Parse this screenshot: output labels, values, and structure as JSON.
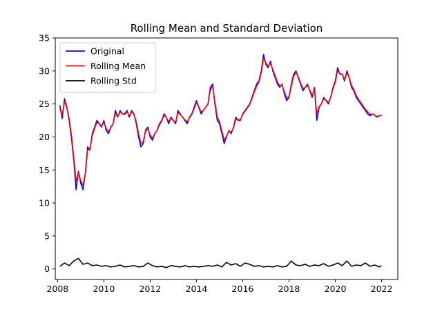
{
  "chart_data": {
    "type": "line",
    "title": "Rolling Mean and Standard Deviation",
    "xlabel": "",
    "ylabel": "",
    "xlim": [
      2007.9,
      2022.7
    ],
    "ylim": [
      -1.6,
      35
    ],
    "xticks": [
      2008,
      2010,
      2012,
      2014,
      2016,
      2018,
      2020,
      2022
    ],
    "yticks": [
      0,
      5,
      10,
      15,
      20,
      25,
      30,
      35
    ],
    "grid": false,
    "legend_position": "top-left",
    "series": [
      {
        "name": "Original",
        "color": "#0000ff",
        "x": [
          2008.1,
          2008.2,
          2008.3,
          2008.4,
          2008.5,
          2008.6,
          2008.7,
          2008.8,
          2008.9,
          2009.0,
          2009.1,
          2009.2,
          2009.3,
          2009.4,
          2009.5,
          2009.6,
          2009.7,
          2009.8,
          2009.9,
          2010.0,
          2010.1,
          2010.2,
          2010.3,
          2010.4,
          2010.5,
          2010.6,
          2010.7,
          2010.8,
          2010.9,
          2011.0,
          2011.1,
          2011.2,
          2011.3,
          2011.4,
          2011.5,
          2011.6,
          2011.7,
          2011.8,
          2011.9,
          2012.0,
          2012.1,
          2012.2,
          2012.3,
          2012.4,
          2012.5,
          2012.6,
          2012.7,
          2012.8,
          2012.9,
          2013.0,
          2013.1,
          2013.2,
          2013.3,
          2013.4,
          2013.5,
          2013.6,
          2013.7,
          2013.8,
          2013.9,
          2014.0,
          2014.1,
          2014.2,
          2014.3,
          2014.4,
          2014.5,
          2014.6,
          2014.7,
          2014.8,
          2014.9,
          2015.0,
          2015.1,
          2015.2,
          2015.3,
          2015.4,
          2015.5,
          2015.6,
          2015.7,
          2015.8,
          2015.9,
          2016.0,
          2016.1,
          2016.2,
          2016.3,
          2016.4,
          2016.5,
          2016.6,
          2016.7,
          2016.8,
          2016.9,
          2017.0,
          2017.1,
          2017.2,
          2017.3,
          2017.4,
          2017.5,
          2017.6,
          2017.7,
          2017.8,
          2017.9,
          2018.0,
          2018.1,
          2018.2,
          2018.3,
          2018.4,
          2018.5,
          2018.6,
          2018.7,
          2018.8,
          2018.9,
          2019.0,
          2019.1,
          2019.2,
          2019.3,
          2019.4,
          2019.5,
          2019.6,
          2019.7,
          2019.8,
          2019.9,
          2020.0,
          2020.1,
          2020.2,
          2020.3,
          2020.4,
          2020.5,
          2020.6,
          2020.7,
          2020.8,
          2020.9,
          2021.0,
          2021.1,
          2021.2,
          2021.3,
          2021.4,
          2021.5,
          2021.6,
          2021.7,
          2021.8,
          2021.9,
          2022.0
        ],
        "y": [
          24.8,
          22.8,
          25.8,
          24.5,
          22.5,
          19.8,
          16.5,
          12.0,
          14.8,
          13.0,
          12.0,
          14.5,
          18.5,
          18.0,
          20.5,
          21.5,
          22.5,
          22.0,
          21.5,
          22.5,
          21.0,
          20.5,
          21.5,
          22.0,
          24.0,
          23.0,
          24.0,
          23.5,
          23.5,
          24.0,
          23.0,
          24.0,
          23.5,
          22.0,
          20.0,
          18.5,
          19.0,
          21.0,
          21.5,
          20.0,
          19.5,
          20.5,
          21.0,
          22.0,
          22.5,
          23.5,
          23.0,
          22.0,
          23.0,
          22.5,
          22.0,
          24.0,
          23.5,
          23.0,
          22.5,
          22.0,
          23.0,
          23.5,
          24.5,
          25.5,
          24.5,
          23.5,
          24.0,
          24.5,
          25.0,
          27.5,
          28.0,
          25.0,
          22.5,
          22.0,
          20.5,
          19.0,
          20.0,
          21.0,
          20.5,
          21.5,
          23.0,
          22.5,
          22.5,
          23.5,
          24.0,
          24.5,
          25.0,
          26.0,
          27.0,
          28.0,
          28.5,
          30.0,
          32.5,
          31.0,
          30.5,
          31.5,
          30.0,
          29.0,
          28.0,
          27.5,
          28.0,
          26.5,
          25.5,
          26.0,
          28.0,
          29.5,
          30.0,
          29.0,
          28.0,
          27.0,
          27.5,
          28.0,
          27.0,
          26.0,
          27.5,
          22.5,
          24.5,
          25.0,
          26.0,
          25.5,
          25.0,
          26.0,
          27.5,
          28.5,
          30.5,
          29.5,
          29.5,
          28.5,
          30.0,
          29.0,
          27.5,
          27.0,
          26.0,
          25.5,
          25.0,
          24.5,
          24.0,
          23.5,
          23.2,
          23.5,
          23.3,
          23.0,
          23.2,
          23.3
        ]
      },
      {
        "name": "Rolling Mean",
        "color": "#ff0000",
        "x": [
          2008.1,
          2008.2,
          2008.3,
          2008.4,
          2008.5,
          2008.6,
          2008.7,
          2008.8,
          2008.9,
          2009.0,
          2009.1,
          2009.2,
          2009.3,
          2009.4,
          2009.5,
          2009.6,
          2009.7,
          2009.8,
          2009.9,
          2010.0,
          2010.1,
          2010.2,
          2010.3,
          2010.4,
          2010.5,
          2010.6,
          2010.7,
          2010.8,
          2010.9,
          2011.0,
          2011.1,
          2011.2,
          2011.3,
          2011.4,
          2011.5,
          2011.6,
          2011.7,
          2011.8,
          2011.9,
          2012.0,
          2012.1,
          2012.2,
          2012.3,
          2012.4,
          2012.5,
          2012.6,
          2012.7,
          2012.8,
          2012.9,
          2013.0,
          2013.1,
          2013.2,
          2013.3,
          2013.4,
          2013.5,
          2013.6,
          2013.7,
          2013.8,
          2013.9,
          2014.0,
          2014.1,
          2014.2,
          2014.3,
          2014.4,
          2014.5,
          2014.6,
          2014.7,
          2014.8,
          2014.9,
          2015.0,
          2015.1,
          2015.2,
          2015.3,
          2015.4,
          2015.5,
          2015.6,
          2015.7,
          2015.8,
          2015.9,
          2016.0,
          2016.1,
          2016.2,
          2016.3,
          2016.4,
          2016.5,
          2016.6,
          2016.7,
          2016.8,
          2016.9,
          2017.0,
          2017.1,
          2017.2,
          2017.3,
          2017.4,
          2017.5,
          2017.6,
          2017.7,
          2017.8,
          2017.9,
          2018.0,
          2018.1,
          2018.2,
          2018.3,
          2018.4,
          2018.5,
          2018.6,
          2018.7,
          2018.8,
          2018.9,
          2019.0,
          2019.1,
          2019.2,
          2019.3,
          2019.4,
          2019.5,
          2019.6,
          2019.7,
          2019.8,
          2019.9,
          2020.0,
          2020.1,
          2020.2,
          2020.3,
          2020.4,
          2020.5,
          2020.6,
          2020.7,
          2020.8,
          2020.9,
          2021.0,
          2021.1,
          2021.2,
          2021.3,
          2021.4,
          2021.5,
          2021.6,
          2021.7,
          2021.8,
          2021.9,
          2022.0
        ],
        "y": [
          24.2,
          23.4,
          25.4,
          24.4,
          22.8,
          20.2,
          16.9,
          13.2,
          14.6,
          13.4,
          12.6,
          14.5,
          18.0,
          18.3,
          20.2,
          21.3,
          22.2,
          22.0,
          21.7,
          22.2,
          21.3,
          20.8,
          21.4,
          22.0,
          23.6,
          23.1,
          23.8,
          23.5,
          23.4,
          23.8,
          23.2,
          23.8,
          23.4,
          22.3,
          20.5,
          19.0,
          19.3,
          20.8,
          21.3,
          20.3,
          19.8,
          20.5,
          21.0,
          21.8,
          22.4,
          23.3,
          23.0,
          22.3,
          22.8,
          22.5,
          22.2,
          23.7,
          23.4,
          23.0,
          22.6,
          22.3,
          22.9,
          23.4,
          24.3,
          25.2,
          24.6,
          23.8,
          24.0,
          24.5,
          25.0,
          27.1,
          27.7,
          25.3,
          23.0,
          22.3,
          20.9,
          19.5,
          20.1,
          20.9,
          20.7,
          21.4,
          22.7,
          22.6,
          22.6,
          23.4,
          23.9,
          24.4,
          24.9,
          25.8,
          26.8,
          27.7,
          28.3,
          29.7,
          32.0,
          31.2,
          30.7,
          31.2,
          30.2,
          29.3,
          28.3,
          27.7,
          27.9,
          26.8,
          25.9,
          26.1,
          27.7,
          29.2,
          29.8,
          29.1,
          28.2,
          27.3,
          27.5,
          27.8,
          27.1,
          26.3,
          27.2,
          23.5,
          24.6,
          25.0,
          25.8,
          25.6,
          25.2,
          26.0,
          27.3,
          28.3,
          30.1,
          29.6,
          29.5,
          28.7,
          29.7,
          29.0,
          27.8,
          27.2,
          26.3,
          25.7,
          25.2,
          24.7,
          24.2,
          23.8,
          23.4,
          23.5,
          23.3,
          23.1,
          23.2,
          23.3
        ]
      },
      {
        "name": "Rolling Std",
        "color": "#000000",
        "x": [
          2008.1,
          2008.3,
          2008.5,
          2008.7,
          2008.9,
          2009.1,
          2009.3,
          2009.5,
          2009.7,
          2009.9,
          2010.1,
          2010.3,
          2010.5,
          2010.7,
          2010.9,
          2011.1,
          2011.3,
          2011.5,
          2011.7,
          2011.9,
          2012.1,
          2012.3,
          2012.5,
          2012.7,
          2012.9,
          2013.1,
          2013.3,
          2013.5,
          2013.7,
          2013.9,
          2014.1,
          2014.3,
          2014.5,
          2014.7,
          2014.9,
          2015.1,
          2015.3,
          2015.5,
          2015.7,
          2015.9,
          2016.1,
          2016.3,
          2016.5,
          2016.7,
          2016.9,
          2017.1,
          2017.3,
          2017.5,
          2017.7,
          2017.9,
          2018.1,
          2018.3,
          2018.5,
          2018.7,
          2018.9,
          2019.1,
          2019.3,
          2019.5,
          2019.7,
          2019.9,
          2020.1,
          2020.3,
          2020.5,
          2020.7,
          2020.9,
          2021.1,
          2021.3,
          2021.5,
          2021.7,
          2021.9,
          2022.0
        ],
        "y": [
          0.4,
          0.9,
          0.5,
          1.2,
          1.6,
          0.7,
          0.9,
          0.5,
          0.6,
          0.4,
          0.5,
          0.3,
          0.4,
          0.6,
          0.3,
          0.4,
          0.5,
          0.3,
          0.4,
          0.9,
          0.5,
          0.3,
          0.4,
          0.2,
          0.5,
          0.4,
          0.3,
          0.5,
          0.3,
          0.4,
          0.3,
          0.4,
          0.5,
          0.4,
          0.6,
          0.3,
          1.0,
          0.6,
          0.8,
          0.4,
          0.9,
          0.7,
          0.4,
          0.5,
          0.3,
          0.4,
          0.3,
          0.5,
          0.3,
          0.4,
          1.2,
          0.6,
          0.5,
          0.7,
          0.4,
          0.6,
          0.5,
          0.8,
          0.4,
          0.6,
          0.9,
          0.5,
          1.2,
          0.4,
          0.6,
          0.5,
          0.9,
          0.4,
          0.6,
          0.3,
          0.5
        ]
      }
    ]
  }
}
